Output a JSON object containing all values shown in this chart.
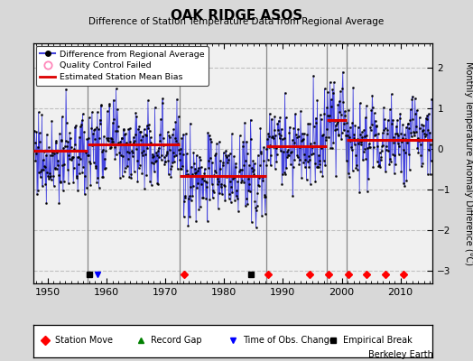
{
  "title": "OAK RIDGE ASOS",
  "subtitle": "Difference of Station Temperature Data from Regional Average",
  "ylabel": "Monthly Temperature Anomaly Difference (°C)",
  "xlabel_years": [
    1950,
    1960,
    1970,
    1980,
    1990,
    2000,
    2010
  ],
  "ylim": [
    -3.3,
    2.6
  ],
  "yticks": [
    -3,
    -2,
    -1,
    0,
    1,
    2
  ],
  "xmin": 1947.5,
  "xmax": 2015.5,
  "background_color": "#d8d8d8",
  "plot_bg_color": "#f0f0f0",
  "grid_color": "#bbbbbb",
  "line_color": "#4444dd",
  "bias_color": "#dd0000",
  "watermark": "Berkeley Earth",
  "segments": [
    {
      "start": 1947.5,
      "end": 1956.7,
      "bias": -0.05
    },
    {
      "start": 1956.7,
      "end": 1972.5,
      "bias": 0.12
    },
    {
      "start": 1972.5,
      "end": 1987.2,
      "bias": -0.65
    },
    {
      "start": 1987.2,
      "end": 1997.5,
      "bias": 0.08
    },
    {
      "start": 1997.5,
      "end": 2000.8,
      "bias": 0.72
    },
    {
      "start": 2000.8,
      "end": 2015.5,
      "bias": 0.22
    }
  ],
  "vertical_lines": [
    1956.7,
    1972.5,
    1987.2,
    1997.5,
    2000.8
  ],
  "station_moves": [
    1973.2,
    1987.5,
    1994.5,
    1997.7,
    2001.2,
    2004.2,
    2007.5,
    2010.5
  ],
  "record_gaps": [],
  "obs_changes": [
    1958.5
  ],
  "empirical_breaks": [
    1957.0,
    1984.5
  ]
}
